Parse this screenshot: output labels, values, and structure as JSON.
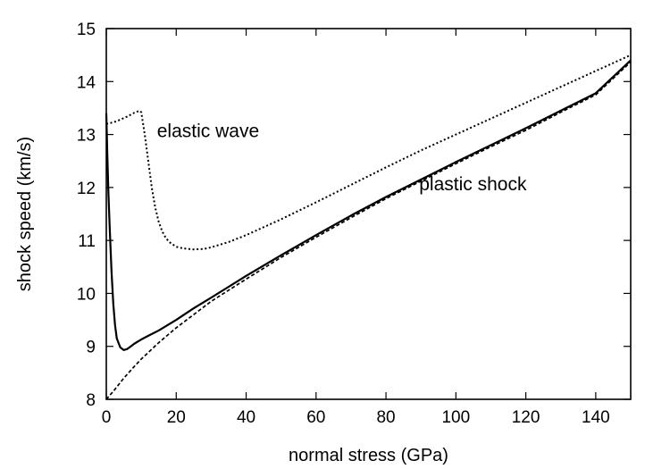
{
  "chart_data": {
    "type": "line",
    "xlabel": "normal stress (GPa)",
    "ylabel": "shock speed (km/s)",
    "xlim": [
      0,
      150
    ],
    "ylim": [
      8,
      15
    ],
    "xticks": [
      0,
      20,
      40,
      60,
      80,
      100,
      120,
      140
    ],
    "yticks": [
      8,
      9,
      10,
      11,
      12,
      13,
      14,
      15
    ],
    "xtick_labels": [
      "0",
      "20",
      "40",
      "60",
      "80",
      "100",
      "120",
      "140"
    ],
    "ytick_labels": [
      "8",
      "9",
      "10",
      "11",
      "12",
      "13",
      "14",
      "15"
    ],
    "grid": false,
    "annotations": [
      {
        "text": "elastic wave",
        "x": 14.5,
        "y": 12.95
      },
      {
        "text": "plastic shock",
        "x": 89.5,
        "y": 11.95
      }
    ],
    "series": [
      {
        "style": "dotted",
        "x": [
          0,
          2,
          4,
          6,
          8,
          9.5,
          10,
          11,
          12,
          13,
          14,
          15,
          16,
          17,
          18,
          20,
          22,
          25,
          28,
          30,
          35,
          40,
          50,
          60,
          70,
          80,
          90,
          100,
          110,
          120,
          130,
          140,
          150
        ],
        "y": [
          13.2,
          13.23,
          13.28,
          13.34,
          13.41,
          13.45,
          13.42,
          13.0,
          12.5,
          12.0,
          11.62,
          11.35,
          11.17,
          11.05,
          10.97,
          10.88,
          10.85,
          10.83,
          10.84,
          10.87,
          10.97,
          11.1,
          11.4,
          11.72,
          12.05,
          12.38,
          12.7,
          13.0,
          13.3,
          13.6,
          13.9,
          14.2,
          14.5
        ]
      },
      {
        "style": "solid",
        "x": [
          0,
          0.3,
          0.6,
          1,
          1.5,
          2,
          2.5,
          3,
          4,
          5,
          6,
          7,
          8,
          10,
          12,
          15,
          20,
          25,
          30,
          40,
          50,
          60,
          70,
          80,
          90,
          100,
          110,
          120,
          130,
          140,
          150
        ],
        "y": [
          13.4,
          12.6,
          11.9,
          11.2,
          10.4,
          9.8,
          9.4,
          9.15,
          8.98,
          8.93,
          8.95,
          9.0,
          9.05,
          9.13,
          9.2,
          9.3,
          9.5,
          9.72,
          9.92,
          10.33,
          10.72,
          11.1,
          11.47,
          11.82,
          12.15,
          12.48,
          12.8,
          13.12,
          13.45,
          13.78,
          14.4
        ]
      },
      {
        "style": "dashed",
        "x": [
          0,
          2,
          5,
          8,
          10,
          15,
          20,
          25,
          30,
          40,
          50,
          60,
          70,
          80,
          90,
          100,
          110,
          120,
          130,
          140,
          150
        ],
        "y": [
          8.0,
          8.15,
          8.4,
          8.62,
          8.76,
          9.07,
          9.35,
          9.6,
          9.85,
          10.27,
          10.68,
          11.06,
          11.43,
          11.79,
          12.12,
          12.45,
          12.77,
          13.08,
          13.42,
          13.75,
          14.37
        ]
      }
    ]
  }
}
